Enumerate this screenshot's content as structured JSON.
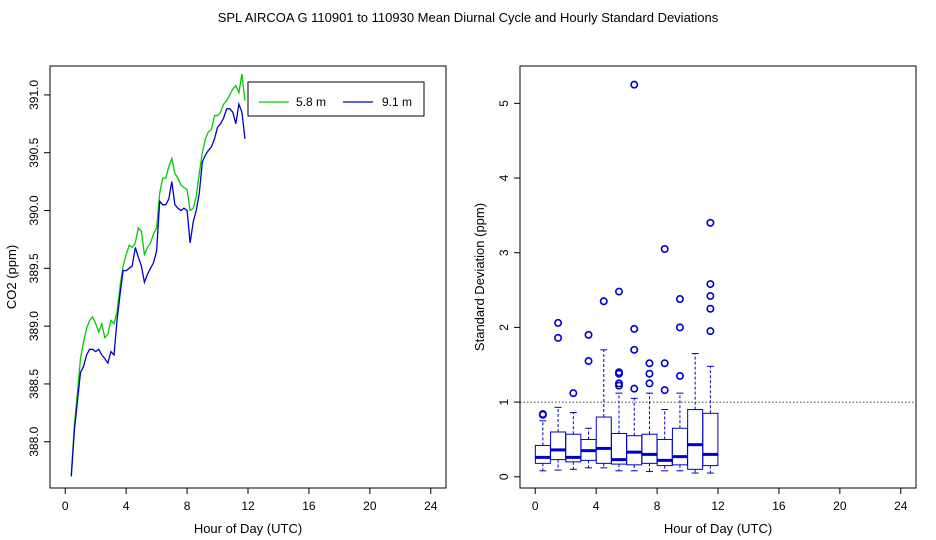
{
  "title": "SPL   AIRCOA G   110901 to 110930   Mean Diurnal Cycle and Hourly Standard Deviations",
  "chart_data": [
    {
      "type": "line",
      "xlabel": "Hour of Day (UTC)",
      "ylabel": "CO2 (ppm)",
      "xlim": [
        -1,
        25
      ],
      "ylim": [
        387.6,
        391.25
      ],
      "xticks": [
        0,
        4,
        8,
        12,
        16,
        20,
        24
      ],
      "yticks": [
        388.0,
        388.5,
        389.0,
        389.5,
        390.0,
        390.5,
        391.0
      ],
      "ytick_labels": [
        "388.0",
        "388.5",
        "389.0",
        "389.5",
        "390.0",
        "390.5",
        "391.0"
      ],
      "legend": {
        "position": "top-right"
      },
      "series": [
        {
          "name": "5.8 m",
          "color": "#00cc00",
          "x": [
            0.4,
            0.6,
            0.8,
            1.0,
            1.2,
            1.4,
            1.6,
            1.8,
            2.0,
            2.2,
            2.4,
            2.6,
            2.8,
            3.0,
            3.2,
            3.4,
            3.6,
            3.8,
            4.0,
            4.2,
            4.4,
            4.6,
            4.8,
            5.0,
            5.2,
            5.4,
            5.6,
            5.8,
            6.0,
            6.2,
            6.4,
            6.6,
            6.8,
            7.0,
            7.2,
            7.4,
            7.6,
            7.8,
            8.0,
            8.2,
            8.4,
            8.6,
            8.8,
            9.0,
            9.2,
            9.4,
            9.6,
            9.8,
            10.0,
            10.2,
            10.4,
            10.6,
            10.8,
            11.0,
            11.2,
            11.4,
            11.6,
            11.8
          ],
          "values": [
            387.72,
            388.15,
            388.42,
            388.72,
            388.86,
            388.98,
            389.05,
            389.08,
            389.02,
            388.95,
            389.02,
            388.9,
            388.93,
            389.05,
            389.02,
            389.12,
            389.35,
            389.52,
            389.62,
            389.7,
            389.68,
            389.72,
            389.85,
            389.82,
            389.62,
            389.68,
            389.72,
            389.8,
            389.85,
            390.15,
            390.28,
            390.28,
            390.38,
            390.45,
            390.32,
            390.28,
            390.22,
            390.2,
            390.18,
            390.0,
            390.02,
            390.12,
            390.32,
            390.5,
            390.62,
            390.68,
            390.7,
            390.82,
            390.82,
            390.85,
            390.92,
            390.95,
            391.0,
            391.05,
            391.08,
            391.02,
            391.18,
            390.95
          ]
        },
        {
          "name": "9.1 m",
          "color": "#0000cc",
          "x": [
            0.4,
            0.6,
            0.8,
            1.0,
            1.2,
            1.4,
            1.6,
            1.8,
            2.0,
            2.2,
            2.4,
            2.6,
            2.8,
            3.0,
            3.2,
            3.4,
            3.6,
            3.8,
            4.0,
            4.2,
            4.4,
            4.6,
            4.8,
            5.0,
            5.2,
            5.4,
            5.6,
            5.8,
            6.0,
            6.2,
            6.4,
            6.6,
            6.8,
            7.0,
            7.2,
            7.4,
            7.6,
            7.8,
            8.0,
            8.2,
            8.4,
            8.6,
            8.8,
            9.0,
            9.2,
            9.4,
            9.6,
            9.8,
            10.0,
            10.2,
            10.4,
            10.6,
            10.8,
            11.0,
            11.2,
            11.4,
            11.6,
            11.8
          ],
          "values": [
            387.7,
            388.1,
            388.35,
            388.6,
            388.65,
            388.75,
            388.8,
            388.8,
            388.78,
            388.8,
            388.75,
            388.72,
            388.68,
            388.78,
            388.75,
            389.05,
            389.28,
            389.48,
            389.48,
            389.5,
            389.52,
            389.68,
            389.6,
            389.52,
            389.38,
            389.45,
            389.5,
            389.55,
            389.65,
            390.08,
            390.05,
            390.05,
            390.1,
            390.25,
            390.05,
            390.02,
            390.0,
            390.02,
            390.0,
            389.72,
            389.9,
            390.0,
            390.15,
            390.42,
            390.48,
            390.52,
            390.55,
            390.62,
            390.72,
            390.75,
            390.8,
            390.88,
            390.88,
            390.85,
            390.75,
            390.92,
            390.85,
            390.62
          ]
        }
      ]
    },
    {
      "type": "box",
      "xlabel": "Hour of Day (UTC)",
      "ylabel": "Standard Deviation (ppm)",
      "xlim": [
        -1,
        25
      ],
      "ylim": [
        -0.15,
        5.5
      ],
      "xticks": [
        0,
        4,
        8,
        12,
        16,
        20,
        24
      ],
      "yticks": [
        0,
        1,
        2,
        3,
        4,
        5
      ],
      "reference_line": 1,
      "color": "#0000cc",
      "boxes": [
        {
          "x": 0.5,
          "whisker_low": 0.08,
          "q1": 0.18,
          "median": 0.26,
          "q3": 0.42,
          "whisker_high": 0.75,
          "outliers": [
            0.83,
            0.84
          ]
        },
        {
          "x": 1.5,
          "whisker_low": 0.09,
          "q1": 0.23,
          "median": 0.36,
          "q3": 0.6,
          "whisker_high": 0.93,
          "outliers": [
            1.86,
            2.06
          ]
        },
        {
          "x": 2.5,
          "whisker_low": 0.1,
          "q1": 0.2,
          "median": 0.26,
          "q3": 0.57,
          "whisker_high": 0.86,
          "outliers": [
            1.12
          ]
        },
        {
          "x": 3.5,
          "whisker_low": 0.12,
          "q1": 0.22,
          "median": 0.35,
          "q3": 0.5,
          "whisker_high": 0.65,
          "outliers": [
            1.55,
            1.9
          ]
        },
        {
          "x": 4.5,
          "whisker_low": 0.12,
          "q1": 0.18,
          "median": 0.38,
          "q3": 0.8,
          "whisker_high": 1.7,
          "outliers": [
            2.35
          ]
        },
        {
          "x": 5.5,
          "whisker_low": 0.08,
          "q1": 0.17,
          "median": 0.23,
          "q3": 0.58,
          "whisker_high": 1.12,
          "outliers": [
            1.22,
            1.25,
            1.38,
            1.4,
            2.48
          ]
        },
        {
          "x": 6.5,
          "whisker_low": 0.08,
          "q1": 0.16,
          "median": 0.33,
          "q3": 0.55,
          "whisker_high": 1.05,
          "outliers": [
            1.18,
            1.7,
            1.98,
            5.25
          ]
        },
        {
          "x": 7.5,
          "whisker_low": 0.07,
          "q1": 0.18,
          "median": 0.3,
          "q3": 0.57,
          "whisker_high": 1.12,
          "outliers": [
            1.25,
            1.38,
            1.52
          ]
        },
        {
          "x": 8.5,
          "whisker_low": 0.08,
          "q1": 0.15,
          "median": 0.22,
          "q3": 0.5,
          "whisker_high": 0.9,
          "outliers": [
            1.16,
            1.52,
            3.05
          ]
        },
        {
          "x": 9.5,
          "whisker_low": 0.08,
          "q1": 0.16,
          "median": 0.27,
          "q3": 0.65,
          "whisker_high": 1.12,
          "outliers": [
            1.35,
            2.0,
            2.38
          ]
        },
        {
          "x": 10.5,
          "whisker_low": 0.05,
          "q1": 0.1,
          "median": 0.43,
          "q3": 0.9,
          "whisker_high": 1.65,
          "outliers": []
        },
        {
          "x": 11.5,
          "whisker_low": 0.05,
          "q1": 0.15,
          "median": 0.3,
          "q3": 0.85,
          "whisker_high": 1.48,
          "outliers": [
            1.95,
            2.25,
            2.42,
            2.58,
            3.4
          ]
        }
      ]
    }
  ]
}
